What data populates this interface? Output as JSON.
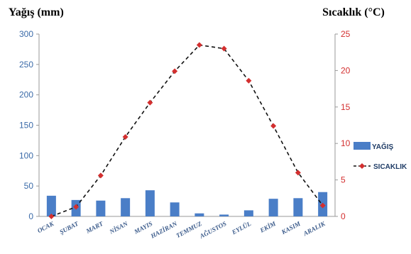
{
  "chart_data": {
    "type": "bar+line",
    "categories": [
      "OCAK",
      "ŞUBAT",
      "MART",
      "NİSAN",
      "MAYIS",
      "HAZİRAN",
      "TEMMUZ",
      "AĞUSTOS",
      "EYLÜL",
      "EKİM",
      "KASIM",
      "ARALIK"
    ],
    "series": [
      {
        "name": "YAĞIŞ",
        "type": "bar",
        "axis": "left",
        "color": "#4a7ec7",
        "values": [
          34,
          27,
          26,
          30,
          43,
          23,
          5,
          3,
          10,
          29,
          30,
          40
        ]
      },
      {
        "name": "SICAKLIK",
        "type": "line",
        "axis": "right",
        "color": "#d32f2f",
        "line_color": "#111111",
        "line_style": "dashed",
        "values": [
          0,
          1.3,
          5.6,
          10.9,
          15.6,
          19.9,
          23.5,
          23,
          18.6,
          12.4,
          6,
          1.5
        ]
      }
    ],
    "ylabel_left": "Yağış (mm)",
    "ylabel_right": "Sıcaklık (°C)",
    "ylim_left": [
      0,
      300
    ],
    "yticks_left": [
      0,
      50,
      100,
      150,
      200,
      250,
      300
    ],
    "ylim_right": [
      0,
      25
    ],
    "yticks_right": [
      0,
      5,
      10,
      15,
      20,
      25
    ],
    "grid": false,
    "legend": "right"
  }
}
